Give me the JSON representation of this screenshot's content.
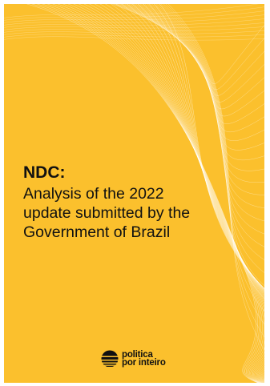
{
  "cover": {
    "title": "NDC:",
    "subtitle_lines": [
      "Analysis of the 2022",
      "update submitted by the",
      "Government of Brazil"
    ],
    "background_color": "#fbc02d"
  },
  "logo": {
    "line1": "politica",
    "line2": "por inteiro",
    "icon": "striped-circle-icon"
  }
}
